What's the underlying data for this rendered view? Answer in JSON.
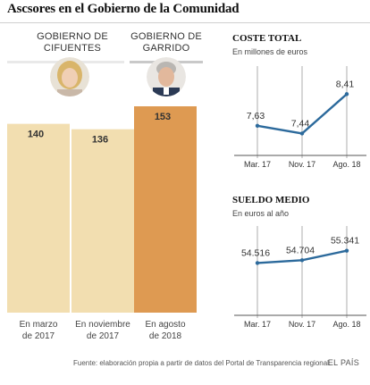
{
  "title": "Ascsores en el Gobierno de la Comunidad",
  "groups": [
    {
      "label_line1": "GOBIERNO DE",
      "label_line2": "CIFUENTES"
    },
    {
      "label_line1": "GOBIERNO DE",
      "label_line2": "GARRIDO"
    }
  ],
  "colors": {
    "bar_light": "#f2deb0",
    "bar_highlight": "#de9a52",
    "line": "#2c6a9c",
    "grid": "#9a9a9a"
  },
  "chart_data": [
    {
      "type": "bar",
      "categories": [
        "En marzo\nde 2017",
        "En noviembre\nde 2017",
        "En agosto\nde 2018"
      ],
      "values": [
        140,
        136,
        153
      ],
      "data_labels": [
        "140",
        "136",
        "153"
      ],
      "highlight_index": 2,
      "ylim": [
        0,
        153
      ]
    },
    {
      "type": "line",
      "title": "COSTE TOTAL",
      "subtitle": "En millones de euros",
      "categories": [
        "Mar. 17",
        "Nov. 17",
        "Ago. 18"
      ],
      "values": [
        7.63,
        7.44,
        8.41
      ],
      "data_labels": [
        "7,63",
        "7,44",
        "8,41"
      ],
      "ylim": [
        6.9,
        9.1
      ]
    },
    {
      "type": "line",
      "title": "SUELDO MEDIO",
      "subtitle": "En euros al año",
      "categories": [
        "Mar. 17",
        "Nov. 17",
        "Ago. 18"
      ],
      "values": [
        54516,
        54704,
        55341
      ],
      "data_labels": [
        "54.516",
        "54.704",
        "55.341"
      ],
      "ylim": [
        51000,
        57000
      ]
    }
  ],
  "footer": {
    "source": "Fuente: elaboración propia a partir de datos del Portal de Transparencia regional.",
    "brand": "EL PAÍS"
  }
}
